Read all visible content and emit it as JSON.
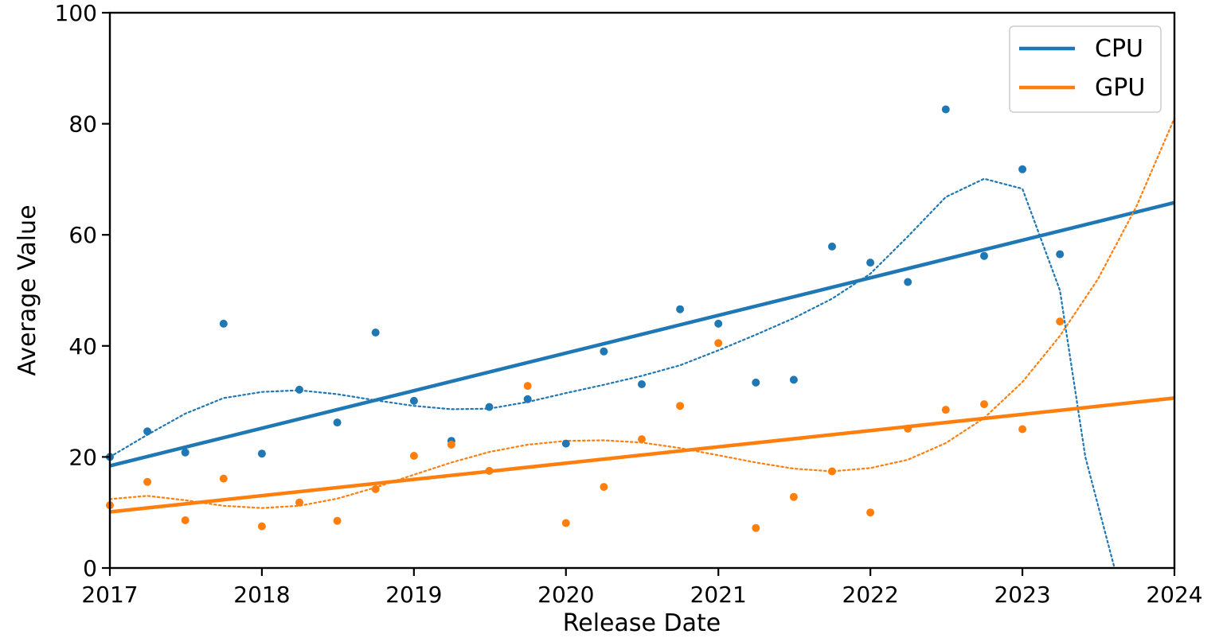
{
  "chart_data": {
    "type": "scatter",
    "title": "",
    "xlabel": "Release Date",
    "ylabel": "Average Value",
    "xlim": [
      "2017-01-01",
      "2024-01-01"
    ],
    "ylim": [
      0,
      100
    ],
    "x_ticks": [
      "2017",
      "2018",
      "2019",
      "2020",
      "2021",
      "2022",
      "2023",
      "2024"
    ],
    "y_ticks": [
      "0",
      "20",
      "40",
      "60",
      "80",
      "100"
    ],
    "grid": false,
    "legend_position": "top-right",
    "series": [
      {
        "name": "CPU",
        "color": "#1f77b4",
        "points": [
          {
            "x": "2017-01-01",
            "y": 20.0
          },
          {
            "x": "2017-04-01",
            "y": 24.6
          },
          {
            "x": "2017-07-01",
            "y": 20.8
          },
          {
            "x": "2017-10-01",
            "y": 44.0
          },
          {
            "x": "2018-01-01",
            "y": 20.6
          },
          {
            "x": "2018-04-01",
            "y": 32.1
          },
          {
            "x": "2018-07-01",
            "y": 26.2
          },
          {
            "x": "2018-10-01",
            "y": 42.4
          },
          {
            "x": "2019-01-01",
            "y": 30.1
          },
          {
            "x": "2019-04-01",
            "y": 22.9
          },
          {
            "x": "2019-07-01",
            "y": 29.0
          },
          {
            "x": "2019-10-01",
            "y": 30.4
          },
          {
            "x": "2020-01-01",
            "y": 22.4
          },
          {
            "x": "2020-04-01",
            "y": 39.0
          },
          {
            "x": "2020-07-01",
            "y": 33.1
          },
          {
            "x": "2020-10-01",
            "y": 46.6
          },
          {
            "x": "2021-01-01",
            "y": 44.0
          },
          {
            "x": "2021-04-01",
            "y": 33.4
          },
          {
            "x": "2021-07-01",
            "y": 33.9
          },
          {
            "x": "2021-10-01",
            "y": 57.9
          },
          {
            "x": "2022-01-01",
            "y": 55.0
          },
          {
            "x": "2022-04-01",
            "y": 51.5
          },
          {
            "x": "2022-07-01",
            "y": 82.6
          },
          {
            "x": "2022-10-01",
            "y": 56.2
          },
          {
            "x": "2023-01-01",
            "y": 71.8
          },
          {
            "x": "2023-04-01",
            "y": 56.5
          }
        ],
        "linear_fit": [
          {
            "x": "2017-01-01",
            "y": 18.4
          },
          {
            "x": "2024-01-01",
            "y": 65.8
          }
        ],
        "poly_fit": [
          {
            "x": "2017-01-01",
            "y": 20.0
          },
          {
            "x": "2017-04-01",
            "y": 24.0
          },
          {
            "x": "2017-07-01",
            "y": 27.8
          },
          {
            "x": "2017-10-01",
            "y": 30.6
          },
          {
            "x": "2018-01-01",
            "y": 31.7
          },
          {
            "x": "2018-04-01",
            "y": 32.0
          },
          {
            "x": "2018-07-01",
            "y": 31.3
          },
          {
            "x": "2018-10-01",
            "y": 30.2
          },
          {
            "x": "2019-01-01",
            "y": 29.2
          },
          {
            "x": "2019-04-01",
            "y": 28.6
          },
          {
            "x": "2019-07-01",
            "y": 28.7
          },
          {
            "x": "2019-10-01",
            "y": 29.9
          },
          {
            "x": "2020-01-01",
            "y": 31.5
          },
          {
            "x": "2020-04-01",
            "y": 33.0
          },
          {
            "x": "2020-07-01",
            "y": 34.6
          },
          {
            "x": "2020-10-01",
            "y": 36.5
          },
          {
            "x": "2021-01-01",
            "y": 39.2
          },
          {
            "x": "2021-04-01",
            "y": 42.0
          },
          {
            "x": "2021-07-01",
            "y": 45.0
          },
          {
            "x": "2021-10-01",
            "y": 48.5
          },
          {
            "x": "2022-01-01",
            "y": 53.0
          },
          {
            "x": "2022-04-01",
            "y": 59.7
          },
          {
            "x": "2022-07-01",
            "y": 66.8
          },
          {
            "x": "2022-10-01",
            "y": 70.1
          },
          {
            "x": "2023-01-01",
            "y": 68.3
          },
          {
            "x": "2023-04-01",
            "y": 50.0
          },
          {
            "x": "2023-06-01",
            "y": 20.0
          },
          {
            "x": "2023-08-10",
            "y": 0.0
          }
        ]
      },
      {
        "name": "GPU",
        "color": "#ff7f0e",
        "points": [
          {
            "x": "2017-01-01",
            "y": 11.3
          },
          {
            "x": "2017-04-01",
            "y": 15.5
          },
          {
            "x": "2017-07-01",
            "y": 8.6
          },
          {
            "x": "2017-10-01",
            "y": 16.1
          },
          {
            "x": "2018-01-01",
            "y": 7.5
          },
          {
            "x": "2018-04-01",
            "y": 11.8
          },
          {
            "x": "2018-07-01",
            "y": 8.5
          },
          {
            "x": "2018-10-01",
            "y": 14.2
          },
          {
            "x": "2019-01-01",
            "y": 20.2
          },
          {
            "x": "2019-04-01",
            "y": 22.2
          },
          {
            "x": "2019-07-01",
            "y": 17.5
          },
          {
            "x": "2019-10-01",
            "y": 32.8
          },
          {
            "x": "2020-01-01",
            "y": 8.1
          },
          {
            "x": "2020-04-01",
            "y": 14.6
          },
          {
            "x": "2020-07-01",
            "y": 23.2
          },
          {
            "x": "2020-10-01",
            "y": 29.2
          },
          {
            "x": "2021-01-01",
            "y": 40.5
          },
          {
            "x": "2021-04-01",
            "y": 7.2
          },
          {
            "x": "2021-07-01",
            "y": 12.8
          },
          {
            "x": "2021-10-01",
            "y": 17.4
          },
          {
            "x": "2022-01-01",
            "y": 10.0
          },
          {
            "x": "2022-04-01",
            "y": 25.1
          },
          {
            "x": "2022-07-01",
            "y": 28.5
          },
          {
            "x": "2022-10-01",
            "y": 29.5
          },
          {
            "x": "2023-01-01",
            "y": 25.0
          },
          {
            "x": "2023-04-01",
            "y": 44.4
          }
        ],
        "linear_fit": [
          {
            "x": "2017-01-01",
            "y": 10.1
          },
          {
            "x": "2024-01-01",
            "y": 30.6
          }
        ],
        "poly_fit": [
          {
            "x": "2017-01-01",
            "y": 12.4
          },
          {
            "x": "2017-04-01",
            "y": 13.0
          },
          {
            "x": "2017-07-01",
            "y": 12.2
          },
          {
            "x": "2017-10-01",
            "y": 11.2
          },
          {
            "x": "2018-01-01",
            "y": 10.8
          },
          {
            "x": "2018-04-01",
            "y": 11.2
          },
          {
            "x": "2018-07-01",
            "y": 12.5
          },
          {
            "x": "2018-10-01",
            "y": 14.5
          },
          {
            "x": "2019-01-01",
            "y": 16.8
          },
          {
            "x": "2019-04-01",
            "y": 19.0
          },
          {
            "x": "2019-07-01",
            "y": 20.9
          },
          {
            "x": "2019-10-01",
            "y": 22.2
          },
          {
            "x": "2020-01-01",
            "y": 22.9
          },
          {
            "x": "2020-04-01",
            "y": 23.0
          },
          {
            "x": "2020-07-01",
            "y": 22.6
          },
          {
            "x": "2020-10-01",
            "y": 21.6
          },
          {
            "x": "2021-01-01",
            "y": 20.3
          },
          {
            "x": "2021-04-01",
            "y": 19.0
          },
          {
            "x": "2021-07-01",
            "y": 17.9
          },
          {
            "x": "2021-10-01",
            "y": 17.4
          },
          {
            "x": "2022-01-01",
            "y": 18.0
          },
          {
            "x": "2022-04-01",
            "y": 19.5
          },
          {
            "x": "2022-07-01",
            "y": 22.5
          },
          {
            "x": "2022-10-01",
            "y": 27.0
          },
          {
            "x": "2023-01-01",
            "y": 33.5
          },
          {
            "x": "2023-04-01",
            "y": 41.8
          },
          {
            "x": "2023-07-01",
            "y": 52.0
          },
          {
            "x": "2023-10-01",
            "y": 65.0
          },
          {
            "x": "2024-01-01",
            "y": 81.0
          }
        ]
      }
    ]
  }
}
